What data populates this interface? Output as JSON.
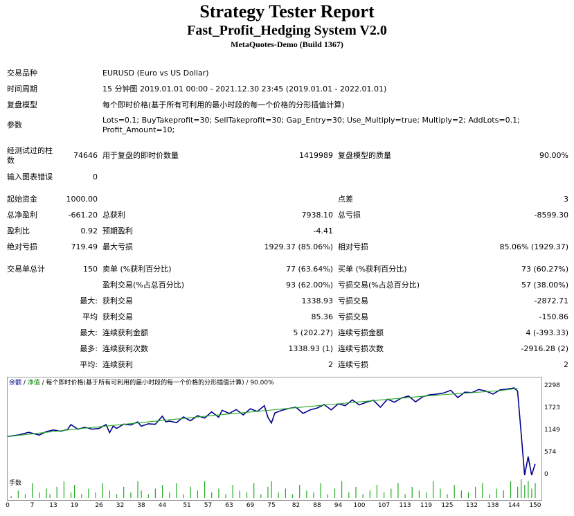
{
  "report": {
    "title": "Strategy Tester Report",
    "subtitle": "Fast_Profit_Hedging System V2.0",
    "build": "MetaQuotes-Demo (Build 1367)"
  },
  "settings": {
    "symbol_label": "交易品种",
    "symbol_value": "EURUSD (Euro vs US Dollar)",
    "period_label": "时间周期",
    "period_value": "15 分钟图 2019.01.01 00:00 - 2021.12.30 23:45 (2019.01.01 - 2022.01.01)",
    "model_label": "复盘模型",
    "model_value": "每个即时价格(基于所有可利用的最小时段的每一个价格的分形插值计算)",
    "params_label": "参数",
    "params_line1": "Lots=0.1; BuyTakeprofit=30; SellTakeprofit=30; Gap_Entry=30; Use_Multiply=true; Multiply=2; AddLots=0.1;",
    "params_line2": "Profit_Amount=10;"
  },
  "stats": {
    "bars_label_1": "经测试过的柱",
    "bars_label_2": "数",
    "bars_value": "74646",
    "ticks_label": "用于复盘的即时价数量",
    "ticks_value": "1419989",
    "quality_label": "复盘模型的质量",
    "quality_value": "90.00%",
    "errors_label": "输入图表错误",
    "errors_value": "0",
    "deposit_label": "起始资金",
    "deposit_value": "1000.00",
    "spread_label": "点差",
    "spread_value": "3",
    "net_label": "总净盈利",
    "net_value": "-661.20",
    "gross_profit_label": "总获利",
    "gross_profit_value": "7938.10",
    "gross_loss_label": "总亏损",
    "gross_loss_value": "-8599.30",
    "pf_label": "盈利比",
    "pf_value": "0.92",
    "payoff_label": "预期盈利",
    "payoff_value": "-4.41",
    "abs_dd_label": "绝对亏损",
    "abs_dd_value": "719.49",
    "max_dd_label": "最大亏损",
    "max_dd_value": "1929.37 (85.06%)",
    "rel_dd_label": "相对亏损",
    "rel_dd_value": "85.06% (1929.37)",
    "trades_label": "交易单总计",
    "trades_value": "150",
    "short_label": "卖单 (%获利百分比)",
    "short_value": "77 (63.64%)",
    "long_label": "买单 (%获利百分比)",
    "long_value": "73 (60.27%)",
    "win_label": "盈利交易(%占总百分比)",
    "win_value": "93 (62.00%)",
    "loss_label": "亏损交易(%占总百分比)",
    "loss_value": "57 (38.00%)",
    "largest_prefix": "最大:",
    "largest_win_label": "获利交易",
    "largest_win_value": "1338.93",
    "largest_loss_label": "亏损交易",
    "largest_loss_value": "-2872.71",
    "avg_prefix": "平均",
    "avg_win_label": "获利交易",
    "avg_win_value": "85.36",
    "avg_loss_label": "亏损交易",
    "avg_loss_value": "-150.86",
    "max_consec_prefix": "最大:",
    "max_consec_win_label": "连续获利金额",
    "max_consec_win_value": "5 (202.27)",
    "max_consec_loss_label": "连续亏损金额",
    "max_consec_loss_value": "4 (-393.33)",
    "most_prefix": "最多:",
    "most_win_label": "连续获利次数",
    "most_win_value": "1338.93 (1)",
    "most_loss_label": "连续亏损次数",
    "most_loss_value": "-2916.28 (2)",
    "avg_consec_prefix": "平均:",
    "avg_consec_win_label": "连续获利",
    "avg_consec_win_value": "2",
    "avg_consec_loss_label": "连续亏损",
    "avg_consec_loss_value": "2"
  },
  "chart_data": {
    "type": "line",
    "caption_balance": "余额",
    "caption_sep1": " / ",
    "caption_equity": "净值",
    "caption_rest": " / 每个即时价格(基于所有可利用的最小时段的每一个价格的分形插值计算) / 90.00%",
    "lots_label": "手数",
    "colors": {
      "balance": "#00008b",
      "equity": "#22aa22",
      "lots": "#22aa22"
    },
    "ylim": [
      0,
      2298
    ],
    "y_ticks": [
      "2298",
      "1723",
      "1149",
      "574",
      "0"
    ],
    "x_ticks": [
      "0",
      "7",
      "13",
      "19",
      "26",
      "32",
      "38",
      "44",
      "51",
      "57",
      "63",
      "69",
      "75",
      "82",
      "88",
      "94",
      "100",
      "107",
      "113",
      "119",
      "125",
      "132",
      "138",
      "144",
      "150"
    ],
    "x_range": [
      0,
      151
    ],
    "series": [
      {
        "name": "余额",
        "x": [
          0,
          3,
          6,
          9,
          11,
          13,
          15,
          17,
          18,
          19,
          20,
          22,
          24,
          26,
          28,
          29,
          30,
          31,
          33,
          35,
          37,
          38,
          40,
          42,
          44,
          45,
          46,
          48,
          50,
          52,
          54,
          56,
          58,
          60,
          61,
          63,
          65,
          67,
          69,
          71,
          73,
          74,
          75,
          76,
          78,
          80,
          82,
          84,
          86,
          88,
          90,
          92,
          94,
          96,
          98,
          100,
          102,
          104,
          106,
          108,
          110,
          112,
          114,
          116,
          118,
          120,
          122,
          124,
          126,
          128,
          130,
          132,
          134,
          136,
          138,
          140,
          142,
          144,
          145,
          146,
          147,
          148,
          149,
          150
        ],
        "values": [
          1000,
          1040,
          1110,
          1040,
          1130,
          1170,
          1140,
          1180,
          1310,
          1250,
          1190,
          1240,
          1190,
          1210,
          1310,
          1100,
          1270,
          1210,
          1320,
          1300,
          1380,
          1270,
          1330,
          1320,
          1530,
          1380,
          1400,
          1360,
          1510,
          1410,
          1540,
          1480,
          1640,
          1500,
          1680,
          1600,
          1700,
          1560,
          1720,
          1650,
          1800,
          1500,
          1350,
          1610,
          1680,
          1730,
          1760,
          1600,
          1690,
          1740,
          1830,
          1690,
          1850,
          1800,
          1950,
          1820,
          1890,
          1940,
          1760,
          1970,
          1890,
          2000,
          2050,
          1900,
          2030,
          2080,
          2100,
          2130,
          2200,
          2010,
          2150,
          2140,
          2220,
          2180,
          2100,
          2210,
          2230,
          2260,
          2180,
          1100,
          0,
          480,
          0,
          290
        ]
      },
      {
        "name": "净值",
        "x": [
          0,
          20,
          40,
          60,
          80,
          100,
          120,
          140,
          145
        ],
        "values": [
          1000,
          1200,
          1380,
          1560,
          1730,
          1900,
          2060,
          2190,
          2250
        ]
      }
    ],
    "lots_x": [
      1,
      3,
      5,
      7,
      9,
      11,
      12,
      14,
      16,
      18,
      19,
      21,
      23,
      25,
      27,
      29,
      31,
      33,
      35,
      37,
      38,
      40,
      42,
      44,
      46,
      48,
      50,
      52,
      54,
      56,
      58,
      60,
      62,
      64,
      66,
      68,
      70,
      72,
      74,
      75,
      77,
      79,
      81,
      83,
      85,
      87,
      89,
      91,
      93,
      95,
      97,
      99,
      101,
      103,
      105,
      107,
      109,
      111,
      113,
      115,
      117,
      119,
      121,
      123,
      125,
      127,
      129,
      131,
      133,
      135,
      137,
      139,
      141,
      143,
      145,
      146,
      147,
      148,
      149,
      150
    ],
    "lots_values": [
      0.1,
      0.4,
      0.2,
      0.8,
      0.3,
      0.5,
      0.2,
      0.6,
      0.9,
      0.3,
      0.7,
      0.2,
      0.5,
      0.3,
      0.8,
      0.4,
      0.2,
      0.6,
      0.3,
      0.9,
      0.4,
      0.2,
      0.5,
      0.7,
      0.3,
      0.8,
      0.2,
      0.6,
      0.4,
      0.9,
      0.3,
      0.5,
      0.2,
      0.7,
      0.4,
      0.3,
      0.8,
      0.2,
      0.6,
      0.9,
      0.3,
      0.5,
      0.2,
      0.7,
      0.4,
      0.3,
      0.8,
      0.2,
      0.5,
      0.9,
      0.3,
      0.6,
      0.2,
      0.4,
      0.7,
      0.3,
      0.5,
      0.8,
      0.2,
      0.6,
      0.4,
      0.3,
      0.9,
      0.5,
      0.2,
      0.7,
      0.4,
      0.3,
      0.6,
      0.8,
      0.2,
      0.5,
      0.4,
      0.9,
      0.6,
      1.0,
      0.7,
      0.9,
      0.5,
      0.8
    ]
  }
}
